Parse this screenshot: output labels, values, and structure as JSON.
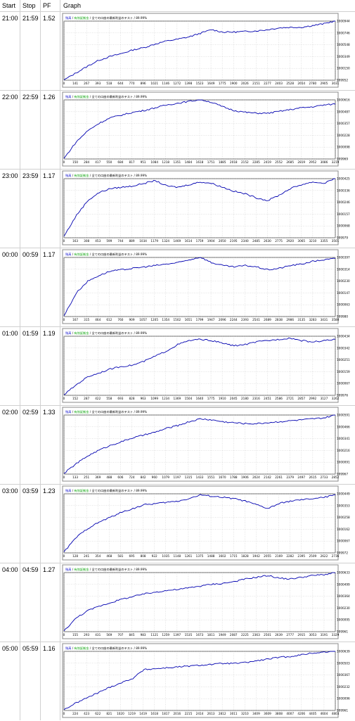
{
  "table": {
    "headers": {
      "start": "Start",
      "stop": "Stop",
      "pf": "PF",
      "graph": "Graph"
    },
    "rows": [
      {
        "start": "21:00",
        "stop": "21:59",
        "pf": "1.52"
      },
      {
        "start": "22:00",
        "stop": "22:59",
        "pf": "1.26"
      },
      {
        "start": "23:00",
        "stop": "23:59",
        "pf": "1.17"
      },
      {
        "start": "00:00",
        "stop": "00:59",
        "pf": "1.17"
      },
      {
        "start": "01:00",
        "stop": "01:59",
        "pf": "1.19"
      },
      {
        "start": "02:00",
        "stop": "02:59",
        "pf": "1.33"
      },
      {
        "start": "03:00",
        "stop": "03:59",
        "pf": "1.23"
      },
      {
        "start": "04:00",
        "stop": "04:59",
        "pf": "1.27"
      },
      {
        "start": "05:00",
        "stop": "05:59",
        "pf": "1.16"
      }
    ]
  },
  "chart_data": [
    {
      "type": "line",
      "title_prefix": "残高",
      "title_mid": "有効証拠金",
      "title_rest": "全ての口座の最新利益のテスト / 89.99%",
      "x": [
        0,
        141,
        267,
        393,
        518,
        644,
        770,
        896,
        1021,
        1146,
        1272,
        1398,
        1523,
        1649,
        1775,
        1900,
        2026,
        2151,
        2277,
        2403,
        2528,
        2654,
        2780,
        2905,
        3031
      ],
      "x_ticks": [
        "0",
        "141",
        "267",
        "393",
        "518",
        "644",
        "770",
        "896",
        "1021",
        "1146",
        "1272",
        "1398",
        "1523",
        "1649",
        "1775",
        "1900",
        "2026",
        "2151",
        "2277",
        "2403",
        "2528",
        "2654",
        "2780",
        "2905",
        "3031"
      ],
      "y_ticks": [
        "1000944",
        "1000746",
        "1000548",
        "1000349",
        "1000150",
        "999952"
      ],
      "ylim": [
        999952,
        1000944
      ],
      "series": [
        {
          "values": [
            999955,
            1000080,
            1000190,
            1000290,
            1000350,
            1000400,
            1000460,
            1000500,
            1000560,
            1000610,
            1000640,
            1000680,
            1000740,
            1000800,
            1000760,
            1000760,
            1000770,
            1000780,
            1000800,
            1000830,
            1000840,
            1000840,
            1000870,
            1000900,
            1000950
          ]
        }
      ]
    },
    {
      "type": "line",
      "title_prefix": "残高",
      "title_mid": "有効証拠金",
      "title_rest": "全ての口座の最新利益のテスト / 89.99%",
      "x": [
        0,
        150,
        284,
        417,
        550,
        684,
        817,
        951,
        1084,
        1218,
        1351,
        1484,
        1618,
        1751,
        1885,
        2018,
        2152,
        2285,
        2419,
        2552,
        2685,
        2819,
        2952,
        3086,
        3219
      ],
      "x_ticks": [
        "0",
        "150",
        "284",
        "417",
        "550",
        "684",
        "817",
        "951",
        "1084",
        "1218",
        "1351",
        "1484",
        "1618",
        "1751",
        "1885",
        "2018",
        "2152",
        "2285",
        "2419",
        "2552",
        "2685",
        "2819",
        "2952",
        "3086",
        "3219"
      ],
      "y_ticks": [
        "1000616",
        "1000487",
        "1000357",
        "1000228",
        "1000098",
        "999969"
      ],
      "ylim": [
        999969,
        1000616
      ],
      "series": [
        {
          "values": [
            999975,
            1000160,
            1000280,
            1000360,
            1000420,
            1000450,
            1000480,
            1000500,
            1000530,
            1000560,
            1000580,
            1000600,
            1000620,
            1000590,
            1000540,
            1000500,
            1000480,
            1000470,
            1000470,
            1000490,
            1000510,
            1000530,
            1000540,
            1000560,
            1000570
          ]
        }
      ]
    },
    {
      "type": "line",
      "title_prefix": "残高",
      "title_mid": "有効証拠金",
      "title_rest": "全ての口座の最新利益のテスト / 89.99%",
      "x": [
        0,
        163,
        308,
        453,
        599,
        744,
        889,
        1034,
        1179,
        1324,
        1469,
        1614,
        1759,
        1904,
        2050,
        2195,
        2340,
        2485,
        2630,
        2775,
        2920,
        3065,
        3210,
        3355,
        3501
      ],
      "x_ticks": [
        "0",
        "163",
        "308",
        "453",
        "599",
        "744",
        "889",
        "1034",
        "1179",
        "1324",
        "1469",
        "1614",
        "1759",
        "1904",
        "2050",
        "2195",
        "2340",
        "2485",
        "2630",
        "2775",
        "2920",
        "3065",
        "3210",
        "3355",
        "3501"
      ],
      "y_ticks": [
        "1000425",
        "1000336",
        "1000246",
        "1000157",
        "1000068",
        "999979"
      ],
      "ylim": [
        999979,
        1000425
      ],
      "series": [
        {
          "values": [
            999990,
            1000150,
            1000260,
            1000320,
            1000350,
            1000360,
            1000370,
            1000390,
            1000410,
            1000370,
            1000360,
            1000380,
            1000400,
            1000390,
            1000360,
            1000330,
            1000310,
            1000280,
            1000260,
            1000300,
            1000350,
            1000380,
            1000400,
            1000390,
            1000430
          ]
        }
      ]
    },
    {
      "type": "line",
      "title_prefix": "残高",
      "title_mid": "有効証拠金",
      "title_rest": "全ての口座の最新利益のテスト / 89.99%",
      "x": [
        0,
        167,
        315,
        464,
        612,
        760,
        909,
        1057,
        1205,
        1354,
        1502,
        1651,
        1799,
        1947,
        2096,
        2244,
        2393,
        2541,
        2689,
        2838,
        2986,
        3135,
        3283,
        3431,
        3580
      ],
      "x_ticks": [
        "0",
        "167",
        "315",
        "464",
        "612",
        "760",
        "909",
        "1057",
        "1205",
        "1354",
        "1502",
        "1651",
        "1799",
        "1947",
        "2096",
        "2244",
        "2393",
        "2541",
        "2689",
        "2838",
        "2986",
        "3135",
        "3283",
        "3431",
        "3580"
      ],
      "y_ticks": [
        "1000397",
        "1000314",
        "1000230",
        "1000147",
        "1000063",
        "999980"
      ],
      "ylim": [
        999980,
        1000397
      ],
      "series": [
        {
          "values": [
            999985,
            1000150,
            1000230,
            1000270,
            1000300,
            1000310,
            1000320,
            1000330,
            1000340,
            1000350,
            1000360,
            1000380,
            1000400,
            1000360,
            1000340,
            1000330,
            1000340,
            1000330,
            1000310,
            1000320,
            1000340,
            1000350,
            1000370,
            1000380,
            1000390
          ]
        }
      ]
    },
    {
      "type": "line",
      "title_prefix": "残高",
      "title_mid": "有効証拠金",
      "title_rest": "全ての口座の最新利益のテスト / 89.99%",
      "x": [
        0,
        152,
        287,
        422,
        558,
        693,
        828,
        963,
        1099,
        1234,
        1369,
        1504,
        1640,
        1775,
        1910,
        2045,
        2180,
        2316,
        2451,
        2586,
        2721,
        2857,
        2992,
        3127,
        3262
      ],
      "x_ticks": [
        "0",
        "152",
        "287",
        "422",
        "558",
        "693",
        "828",
        "963",
        "1099",
        "1234",
        "1369",
        "1504",
        "1640",
        "1775",
        "1910",
        "2045",
        "2180",
        "2316",
        "2451",
        "2586",
        "2721",
        "2857",
        "2992",
        "3127",
        "3262"
      ],
      "y_ticks": [
        "1000434",
        "1000342",
        "1000251",
        "1000159",
        "1000067",
        "999976"
      ],
      "ylim": [
        999976,
        1000434
      ],
      "series": [
        {
          "values": [
            999980,
            1000060,
            1000120,
            1000150,
            1000180,
            1000200,
            1000210,
            1000240,
            1000280,
            1000320,
            1000370,
            1000400,
            1000410,
            1000400,
            1000380,
            1000360,
            1000370,
            1000390,
            1000400,
            1000410,
            1000420,
            1000400,
            1000390,
            1000400,
            1000410
          ]
        }
      ]
    },
    {
      "type": "line",
      "title_prefix": "残高",
      "title_mid": "有効証拠金",
      "title_rest": "全ての口座の最新利益のテスト / 89.99%",
      "x": [
        0,
        133,
        251,
        369,
        488,
        606,
        724,
        842,
        960,
        1079,
        1197,
        1315,
        1433,
        1551,
        1670,
        1788,
        1906,
        2024,
        2142,
        2261,
        2379,
        2497,
        2615,
        2733,
        2852
      ],
      "x_ticks": [
        "0",
        "133",
        "251",
        "369",
        "488",
        "606",
        "724",
        "842",
        "960",
        "1079",
        "1197",
        "1315",
        "1433",
        "1551",
        "1670",
        "1788",
        "1906",
        "2024",
        "2142",
        "2261",
        "2379",
        "2497",
        "2615",
        "2733",
        "2852"
      ],
      "y_ticks": [
        "1000591",
        "1000466",
        "1000341",
        "1000216",
        "1000091",
        "999967"
      ],
      "ylim": [
        999967,
        1000591
      ],
      "series": [
        {
          "values": [
            999975,
            1000080,
            1000160,
            1000220,
            1000270,
            1000310,
            1000350,
            1000380,
            1000410,
            1000450,
            1000480,
            1000520,
            1000550,
            1000540,
            1000520,
            1000510,
            1000500,
            1000500,
            1000510,
            1000520,
            1000530,
            1000540,
            1000550,
            1000560,
            1000590
          ]
        }
      ]
    },
    {
      "type": "line",
      "title_prefix": "残高",
      "title_mid": "有効証拠金",
      "title_rest": "全ての口座の最新利益のテスト / 89.99%",
      "x": [
        0,
        128,
        241,
        354,
        468,
        581,
        695,
        808,
        922,
        1035,
        1148,
        1261,
        1375,
        1488,
        1602,
        1715,
        1828,
        1942,
        2055,
        2169,
        2282,
        2395,
        2509,
        2622,
        2736
      ],
      "x_ticks": [
        "0",
        "128",
        "241",
        "354",
        "468",
        "581",
        "695",
        "808",
        "922",
        "1035",
        "1148",
        "1261",
        "1375",
        "1488",
        "1602",
        "1715",
        "1828",
        "1942",
        "2055",
        "2169",
        "2282",
        "2395",
        "2509",
        "2622",
        "2736"
      ],
      "y_ticks": [
        "1000449",
        "1000353",
        "1000258",
        "1000162",
        "1000067",
        "999972"
      ],
      "ylim": [
        999972,
        1000449
      ],
      "series": [
        {
          "values": [
            999980,
            1000100,
            1000170,
            1000220,
            1000260,
            1000300,
            1000330,
            1000360,
            1000370,
            1000380,
            1000390,
            1000410,
            1000440,
            1000430,
            1000420,
            1000410,
            1000390,
            1000360,
            1000330,
            1000370,
            1000390,
            1000400,
            1000410,
            1000420,
            1000440
          ]
        }
      ]
    },
    {
      "type": "line",
      "title_prefix": "残高",
      "title_mid": "有効証拠金",
      "title_rest": "全ての口座の最新利益のテスト / 89.99%",
      "x": [
        0,
        155,
        293,
        431,
        569,
        707,
        845,
        983,
        1121,
        1259,
        1397,
        1535,
        1673,
        1811,
        1949,
        2087,
        2225,
        2363,
        2501,
        2639,
        2777,
        2915,
        3053,
        3191,
        3329
      ],
      "x_ticks": [
        "0",
        "155",
        "293",
        "431",
        "569",
        "707",
        "845",
        "983",
        "1121",
        "1259",
        "1397",
        "1535",
        "1673",
        "1811",
        "1949",
        "2087",
        "2225",
        "2363",
        "2501",
        "2639",
        "2777",
        "2915",
        "3053",
        "3191",
        "3329"
      ],
      "y_ticks": [
        "1000633",
        "1000499",
        "1000364",
        "1000230",
        "1000095",
        "999961"
      ],
      "ylim": [
        999961,
        1000633
      ],
      "series": [
        {
          "values": [
            999970,
            1000120,
            1000200,
            1000250,
            1000290,
            1000330,
            1000360,
            1000390,
            1000410,
            1000430,
            1000440,
            1000460,
            1000480,
            1000500,
            1000510,
            1000530,
            1000560,
            1000580,
            1000600,
            1000570,
            1000560,
            1000580,
            1000600,
            1000610,
            1000630
          ]
        }
      ]
    },
    {
      "type": "line",
      "title_prefix": "残高",
      "title_mid": "有効証拠金",
      "title_rest": "全ての口座の最新利益のテスト / 89.99%",
      "x": [
        0,
        224,
        423,
        622,
        821,
        1020,
        1219,
        1419,
        1618,
        1817,
        2016,
        2215,
        2414,
        2613,
        2812,
        3011,
        3210,
        3409,
        3609,
        3808,
        4007,
        4206,
        4405,
        4604,
        4803
      ],
      "x_ticks": [
        "0",
        "224",
        "423",
        "622",
        "821",
        "1020",
        "1219",
        "1419",
        "1618",
        "1817",
        "2016",
        "2215",
        "2414",
        "2613",
        "2812",
        "3011",
        "3210",
        "3409",
        "3609",
        "3808",
        "4007",
        "4206",
        "4405",
        "4604",
        "4803"
      ],
      "y_ticks": [
        "1000639",
        "1000503",
        "1000367",
        "1000232",
        "1000096",
        "999961"
      ],
      "ylim": [
        999961,
        1000639
      ],
      "series": [
        {
          "values": [
            999970,
            1000050,
            1000110,
            1000170,
            1000230,
            1000280,
            1000330,
            1000430,
            1000440,
            1000450,
            1000460,
            1000470,
            1000480,
            1000490,
            1000500,
            1000500,
            1000510,
            1000530,
            1000550,
            1000570,
            1000580,
            1000600,
            1000620,
            1000630,
            1000640
          ]
        }
      ]
    }
  ]
}
